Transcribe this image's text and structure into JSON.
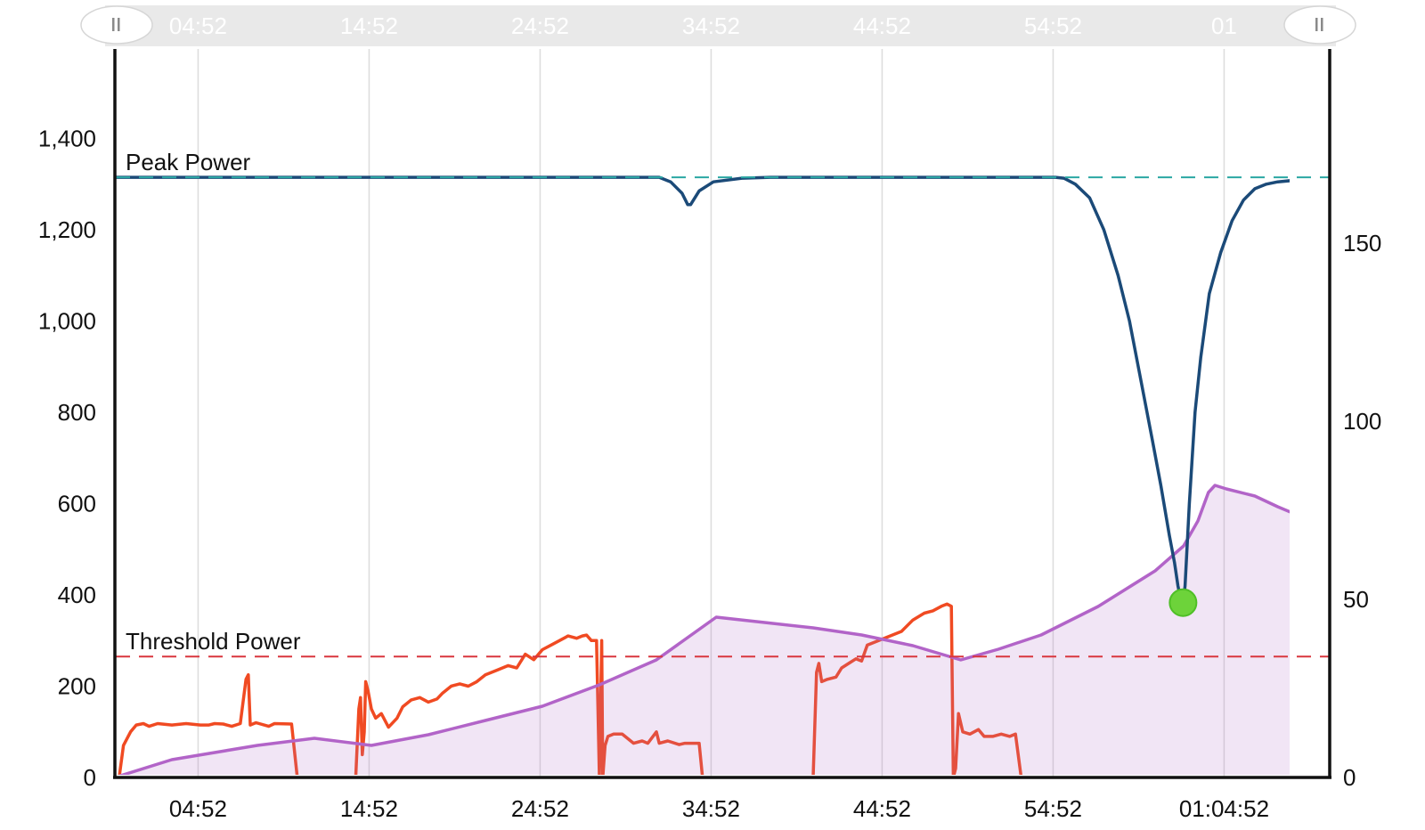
{
  "chart_data": {
    "type": "line",
    "x_unit": "elapsed time (mm:ss)",
    "x_range_seconds": [
      0,
      4080
    ],
    "x_tick_labels": [
      {
        "t": 292,
        "label": "04:52"
      },
      {
        "t": 892,
        "label": "14:52"
      },
      {
        "t": 1492,
        "label": "24:52"
      },
      {
        "t": 2092,
        "label": "34:52"
      },
      {
        "t": 2692,
        "label": "44:52"
      },
      {
        "t": 3292,
        "label": "54:52"
      },
      {
        "t": 3892,
        "label": "01:04:52"
      }
    ],
    "navigator": {
      "tick_labels": [
        {
          "t": 292,
          "label": "04:52"
        },
        {
          "t": 892,
          "label": "14:52"
        },
        {
          "t": 1492,
          "label": "24:52"
        },
        {
          "t": 2092,
          "label": "34:52"
        },
        {
          "t": 2692,
          "label": "44:52"
        },
        {
          "t": 3292,
          "label": "54:52"
        },
        {
          "t": 3892,
          "label": "01"
        }
      ],
      "handle_icon": "pause-bars"
    },
    "y_left": {
      "ylim": [
        0,
        1600
      ],
      "ticks": [
        0,
        200,
        400,
        600,
        800,
        1000,
        1200,
        1400
      ]
    },
    "y_right": {
      "ylim": [
        0,
        200
      ],
      "ticks": [
        0,
        50,
        100,
        150
      ]
    },
    "grid": {
      "vertical": true,
      "horizontal": false
    },
    "reference_lines": [
      {
        "label": "Peak Power",
        "value": 1315,
        "axis": "left",
        "color": "#2aa7a3"
      },
      {
        "label": "Threshold Power",
        "value": 265,
        "axis": "left",
        "color": "#d9363e"
      }
    ],
    "series": [
      {
        "color": "#f04a22",
        "axis": "left",
        "step": true,
        "points": [
          [
            0,
            0
          ],
          [
            15,
            0
          ],
          [
            30,
            70
          ],
          [
            55,
            100
          ],
          [
            75,
            115
          ],
          [
            100,
            118
          ],
          [
            120,
            112
          ],
          [
            150,
            118
          ],
          [
            200,
            115
          ],
          [
            250,
            118
          ],
          [
            300,
            115
          ],
          [
            330,
            115
          ],
          [
            350,
            118
          ],
          [
            380,
            117
          ],
          [
            410,
            112
          ],
          [
            440,
            118
          ],
          [
            460,
            215
          ],
          [
            468,
            225
          ],
          [
            475,
            115
          ],
          [
            495,
            120
          ],
          [
            540,
            112
          ],
          [
            560,
            118
          ],
          [
            620,
            117
          ],
          [
            640,
            0
          ],
          [
            820,
            0
          ],
          [
            845,
            0
          ],
          [
            856,
            150
          ],
          [
            862,
            175
          ],
          [
            868,
            50
          ],
          [
            875,
            100
          ],
          [
            880,
            210
          ],
          [
            888,
            190
          ],
          [
            900,
            150
          ],
          [
            915,
            130
          ],
          [
            935,
            140
          ],
          [
            960,
            110
          ],
          [
            990,
            130
          ],
          [
            1010,
            155
          ],
          [
            1040,
            170
          ],
          [
            1070,
            175
          ],
          [
            1100,
            165
          ],
          [
            1130,
            172
          ],
          [
            1150,
            185
          ],
          [
            1180,
            200
          ],
          [
            1210,
            205
          ],
          [
            1240,
            200
          ],
          [
            1270,
            210
          ],
          [
            1300,
            225
          ],
          [
            1340,
            235
          ],
          [
            1380,
            245
          ],
          [
            1410,
            240
          ],
          [
            1440,
            270
          ],
          [
            1470,
            258
          ],
          [
            1500,
            280
          ],
          [
            1530,
            290
          ],
          [
            1560,
            300
          ],
          [
            1590,
            310
          ],
          [
            1620,
            305
          ],
          [
            1640,
            310
          ],
          [
            1655,
            312
          ],
          [
            1672,
            300
          ],
          [
            1690,
            300
          ],
          [
            1700,
            0
          ],
          [
            1708,
            300
          ],
          [
            1712,
            0
          ],
          [
            1720,
            70
          ],
          [
            1730,
            90
          ],
          [
            1750,
            95
          ],
          [
            1780,
            95
          ],
          [
            1820,
            75
          ],
          [
            1850,
            80
          ],
          [
            1870,
            75
          ],
          [
            1900,
            100
          ],
          [
            1910,
            75
          ],
          [
            1940,
            80
          ],
          [
            1980,
            72
          ],
          [
            2000,
            75
          ],
          [
            2050,
            75
          ],
          [
            2062,
            0
          ],
          [
            2450,
            0
          ],
          [
            2462,
            230
          ],
          [
            2470,
            250
          ],
          [
            2480,
            210
          ],
          [
            2500,
            215
          ],
          [
            2530,
            220
          ],
          [
            2550,
            240
          ],
          [
            2575,
            250
          ],
          [
            2600,
            260
          ],
          [
            2620,
            255
          ],
          [
            2640,
            290
          ],
          [
            2680,
            300
          ],
          [
            2720,
            310
          ],
          [
            2760,
            320
          ],
          [
            2800,
            345
          ],
          [
            2840,
            360
          ],
          [
            2870,
            365
          ],
          [
            2900,
            375
          ],
          [
            2920,
            380
          ],
          [
            2935,
            375
          ],
          [
            2942,
            0
          ],
          [
            2950,
            20
          ],
          [
            2960,
            140
          ],
          [
            2975,
            100
          ],
          [
            3000,
            95
          ],
          [
            3030,
            105
          ],
          [
            3050,
            90
          ],
          [
            3080,
            90
          ],
          [
            3110,
            95
          ],
          [
            3140,
            90
          ],
          [
            3160,
            95
          ],
          [
            3180,
            0
          ],
          [
            4080,
            0
          ]
        ]
      },
      {
        "color": "#b264c8",
        "fill": "rgba(180,110,200,0.18)",
        "axis": "right",
        "points": [
          [
            0,
            0
          ],
          [
            200,
            5
          ],
          [
            500,
            9
          ],
          [
            700,
            11
          ],
          [
            900,
            9
          ],
          [
            1100,
            12
          ],
          [
            1300,
            16
          ],
          [
            1500,
            20
          ],
          [
            1700,
            26
          ],
          [
            1900,
            33
          ],
          [
            2110,
            45
          ],
          [
            2280,
            43.5
          ],
          [
            2450,
            42
          ],
          [
            2620,
            40
          ],
          [
            2800,
            37
          ],
          [
            2968,
            33
          ],
          [
            3100,
            36
          ],
          [
            3250,
            40
          ],
          [
            3350,
            44
          ],
          [
            3450,
            48
          ],
          [
            3550,
            53
          ],
          [
            3650,
            58
          ],
          [
            3750,
            65
          ],
          [
            3800,
            72
          ],
          [
            3837,
            80
          ],
          [
            3860,
            82
          ],
          [
            3900,
            81
          ],
          [
            4000,
            79
          ],
          [
            4080,
            76
          ],
          [
            4200,
            72
          ],
          [
            4400,
            68
          ]
        ]
      },
      {
        "color": "#1b4a78",
        "axis": "left",
        "points": [
          [
            0,
            1315
          ],
          [
            500,
            1315
          ],
          [
            1000,
            1315
          ],
          [
            1500,
            1315
          ],
          [
            1700,
            1315
          ],
          [
            1910,
            1315
          ],
          [
            1950,
            1305
          ],
          [
            1990,
            1280
          ],
          [
            2010,
            1255
          ],
          [
            2020,
            1255
          ],
          [
            2050,
            1285
          ],
          [
            2100,
            1305
          ],
          [
            2200,
            1313
          ],
          [
            2300,
            1315
          ],
          [
            2800,
            1315
          ],
          [
            3300,
            1315
          ],
          [
            3330,
            1313
          ],
          [
            3370,
            1300
          ],
          [
            3420,
            1270
          ],
          [
            3470,
            1200
          ],
          [
            3520,
            1100
          ],
          [
            3560,
            1000
          ],
          [
            3600,
            870
          ],
          [
            3640,
            740
          ],
          [
            3670,
            640
          ],
          [
            3700,
            530
          ],
          [
            3718,
            470
          ],
          [
            3730,
            420
          ],
          [
            3740,
            390
          ],
          [
            3748,
            380
          ],
          [
            3755,
            420
          ],
          [
            3770,
            600
          ],
          [
            3790,
            800
          ],
          [
            3810,
            920
          ],
          [
            3840,
            1060
          ],
          [
            3880,
            1150
          ],
          [
            3920,
            1220
          ],
          [
            3960,
            1265
          ],
          [
            4000,
            1290
          ],
          [
            4040,
            1300
          ],
          [
            4080,
            1305
          ],
          [
            4200,
            1312
          ],
          [
            4400,
            1315
          ]
        ]
      }
    ],
    "marker": {
      "t": 3748,
      "value": 383,
      "axis": "left",
      "color": "#6dd33a"
    }
  }
}
